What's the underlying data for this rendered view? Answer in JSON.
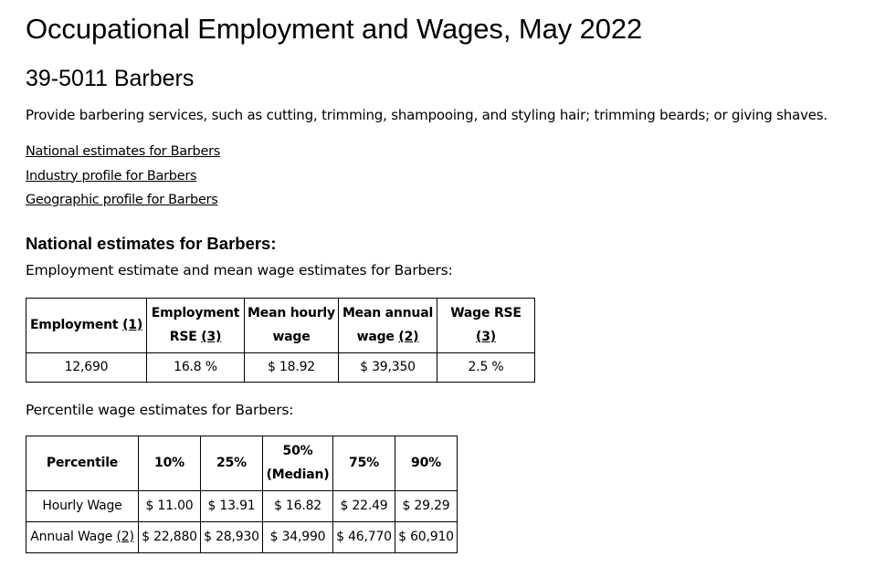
{
  "title": "Occupational Employment and Wages, May 2022",
  "occupation": "39-5011 Barbers",
  "description": "Provide barbering services, such as cutting, trimming, shampooing, and styling hair; trimming beards; or giving shaves.",
  "links": [
    "National estimates for Barbers",
    "Industry profile for Barbers",
    "Geographic profile for Barbers"
  ],
  "national_heading": "National estimates for Barbers:",
  "employment_caption": "Employment estimate and mean wage estimates for Barbers:",
  "employment_table": {
    "headers": [
      {
        "text": "Employment",
        "note": "(1)"
      },
      {
        "text": "Employment RSE",
        "note": "(3)"
      },
      {
        "text": "Mean hourly wage",
        "note": ""
      },
      {
        "text": "Mean annual wage",
        "note": "(2)"
      },
      {
        "text": "Wage RSE",
        "note": "(3)"
      }
    ],
    "values": [
      "12,690",
      "16.8 %",
      "$ 18.92",
      "$ 39,350",
      "2.5 %"
    ]
  },
  "percentile_caption": "Percentile wage estimates for Barbers:",
  "percentile_table": {
    "headers": [
      "Percentile",
      "10%",
      "25%",
      "50%",
      "(Median)",
      "75%",
      "90%"
    ],
    "rows": [
      {
        "label": "Hourly Wage",
        "note": "",
        "values": [
          "$ 11.00",
          "$ 13.91",
          "$ 16.82",
          "$ 22.49",
          "$ 29.29"
        ]
      },
      {
        "label": "Annual Wage",
        "note": "(2)",
        "values": [
          "$ 22,880",
          "$ 28,930",
          "$ 34,990",
          "$ 46,770",
          "$ 60,910"
        ]
      }
    ]
  }
}
